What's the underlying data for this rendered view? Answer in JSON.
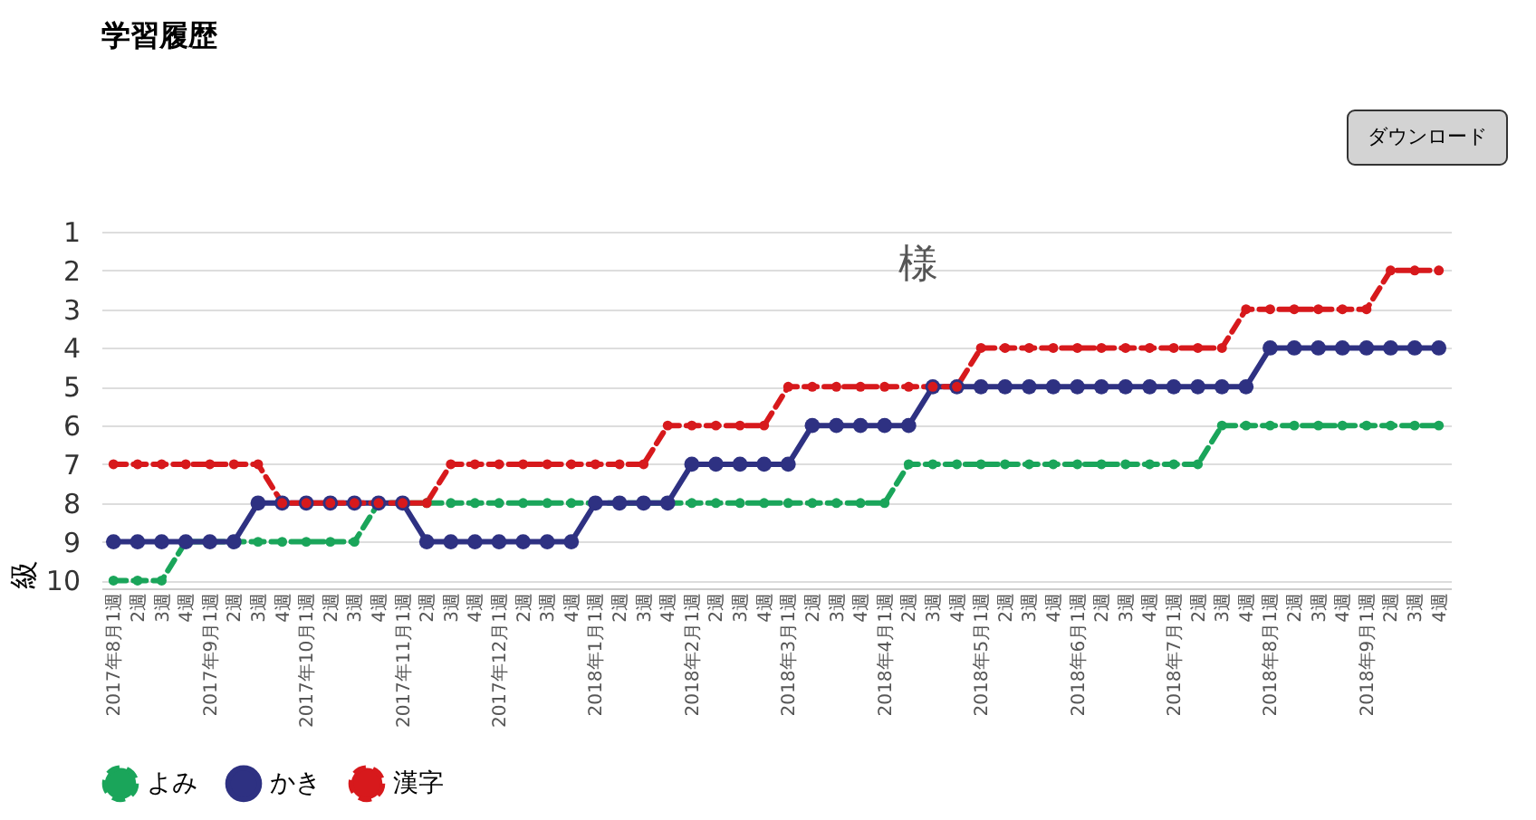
{
  "chart_data": {
    "type": "line",
    "title": "学習履歴",
    "subtitle": "様",
    "ylabel": "級",
    "annotations": [
      "ダウンロード"
    ],
    "categories": [
      "2017年8月1週",
      "2週",
      "3週",
      "4週",
      "2017年9月1週",
      "2週",
      "3週",
      "4週",
      "2017年10月1週",
      "2週",
      "3週",
      "4週",
      "2017年11月1週",
      "2週",
      "3週",
      "4週",
      "2017年12月1週",
      "2週",
      "3週",
      "4週",
      "2018年1月1週",
      "2週",
      "3週",
      "4週",
      "2018年2月1週",
      "2週",
      "3週",
      "4週",
      "2018年3月1週",
      "2週",
      "3週",
      "4週",
      "2018年4月1週",
      "2週",
      "3週",
      "4週",
      "2018年5月1週",
      "2週",
      "3週",
      "4週",
      "2018年6月1週",
      "2週",
      "3週",
      "4週",
      "2018年7月1週",
      "2週",
      "3週",
      "4週",
      "2018年8月1週",
      "2週",
      "3週",
      "4週",
      "2018年9月1週",
      "2週",
      "3週",
      "4週"
    ],
    "series": [
      {
        "name": "よみ",
        "color": "#1aa55a",
        "line_style": "dashed",
        "values": [
          10,
          10,
          10,
          9,
          9,
          9,
          9,
          9,
          9,
          9,
          9,
          8,
          8,
          8,
          8,
          8,
          8,
          8,
          8,
          8,
          8,
          8,
          8,
          8,
          8,
          8,
          8,
          8,
          8,
          8,
          8,
          8,
          8,
          7,
          7,
          7,
          7,
          7,
          7,
          7,
          7,
          7,
          7,
          7,
          7,
          7,
          6,
          6,
          6,
          6,
          6,
          6,
          6,
          6,
          6,
          6
        ]
      },
      {
        "name": "かき",
        "color": "#2e3182",
        "line_style": "solid",
        "values": [
          9,
          9,
          9,
          9,
          9,
          9,
          8,
          8,
          8,
          8,
          8,
          8,
          8,
          9,
          9,
          9,
          9,
          9,
          9,
          9,
          8,
          8,
          8,
          8,
          7,
          7,
          7,
          7,
          7,
          6,
          6,
          6,
          6,
          6,
          5,
          5,
          5,
          5,
          5,
          5,
          5,
          5,
          5,
          5,
          5,
          5,
          5,
          5,
          4,
          4,
          4,
          4,
          4,
          4,
          4,
          4
        ]
      },
      {
        "name": "漢字",
        "color": "#d7191c",
        "line_style": "dashed",
        "values": [
          7,
          7,
          7,
          7,
          7,
          7,
          7,
          8,
          8,
          8,
          8,
          8,
          8,
          8,
          7,
          7,
          7,
          7,
          7,
          7,
          7,
          7,
          7,
          6,
          6,
          6,
          6,
          6,
          5,
          5,
          5,
          5,
          5,
          5,
          5,
          5,
          4,
          4,
          4,
          4,
          4,
          4,
          4,
          4,
          4,
          4,
          4,
          3,
          3,
          3,
          3,
          3,
          3,
          2,
          2,
          2
        ]
      }
    ],
    "ylim": [
      10.2,
      1
    ],
    "yticks": [
      1,
      2,
      3,
      4,
      5,
      6,
      7,
      8,
      9,
      10
    ],
    "grid": "y",
    "legend": "bottom",
    "marker": "circle"
  }
}
